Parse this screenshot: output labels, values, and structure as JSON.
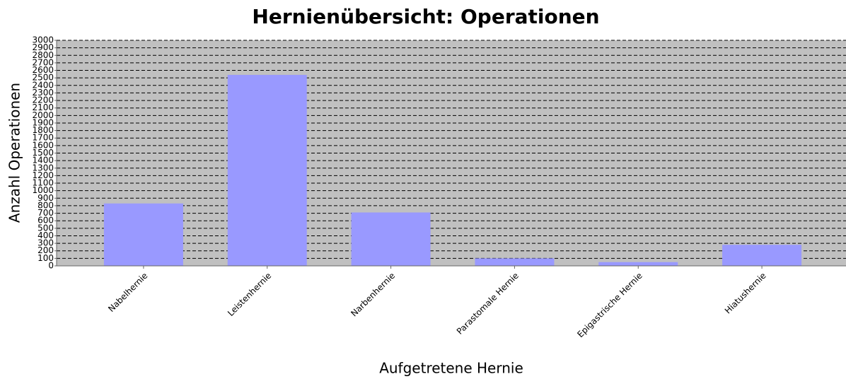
{
  "chart_data": {
    "type": "bar",
    "title": "Hernienübersicht: Operationen",
    "x_label": "Aufgetretene Hernie",
    "y_label": "Anzahl Operationen",
    "categories": [
      "Nabelhernie",
      "Leistenhernie",
      "Narbenhernie",
      "Parastomale Hernie",
      "Epigastrische Hernie",
      "Hiatushernie"
    ],
    "values": [
      830,
      2540,
      710,
      100,
      50,
      280
    ],
    "color": "#9999ff",
    "ylim": [
      0,
      3000
    ],
    "yticks": [
      0,
      100,
      200,
      300,
      400,
      500,
      600,
      700,
      800,
      900,
      1000,
      1100,
      1200,
      1300,
      1400,
      1500,
      1600,
      1700,
      1800,
      1900,
      2000,
      2100,
      2200,
      2300,
      2400,
      2500,
      2600,
      2700,
      2800,
      2900,
      3000
    ],
    "grid": true
  }
}
